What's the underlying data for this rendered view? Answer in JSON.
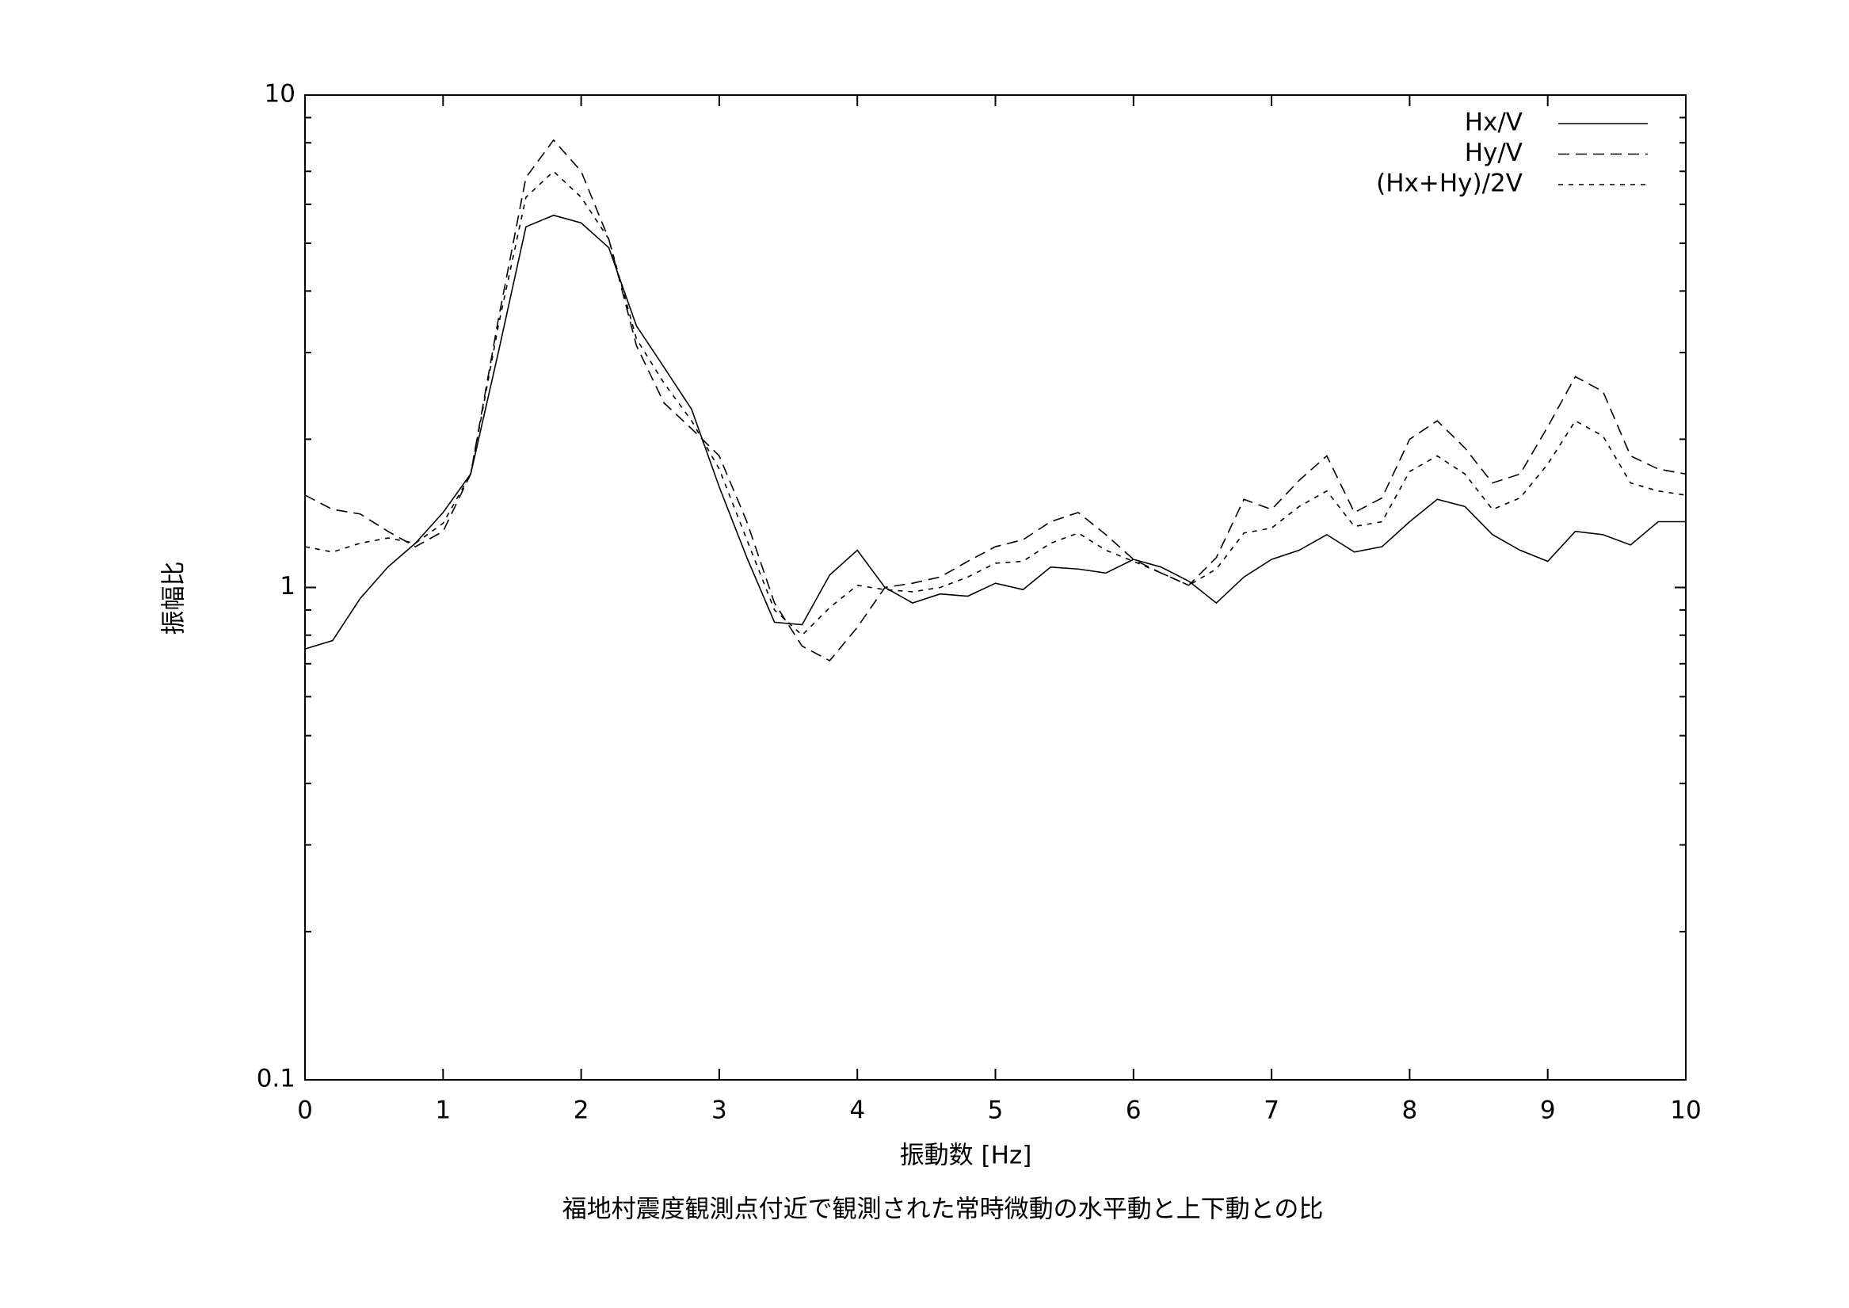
{
  "chart_data": {
    "type": "line",
    "title": "福地村震度観測点付近で観測された常時微動の水平動と上下動との比",
    "xlabel": "振動数 [Hz]",
    "ylabel": "振幅比",
    "x": [
      0,
      0.2,
      0.4,
      0.6,
      0.8,
      1.0,
      1.2,
      1.4,
      1.6,
      1.8,
      2.0,
      2.2,
      2.4,
      2.6,
      2.8,
      3.0,
      3.2,
      3.4,
      3.6,
      3.8,
      4.0,
      4.2,
      4.4,
      4.6,
      4.8,
      5.0,
      5.2,
      5.4,
      5.6,
      5.8,
      6.0,
      6.2,
      6.4,
      6.6,
      6.8,
      7.0,
      7.2,
      7.4,
      7.6,
      7.8,
      8.0,
      8.2,
      8.4,
      8.6,
      8.8,
      9.0,
      9.2,
      9.4,
      9.6,
      9.8,
      10.0
    ],
    "series": [
      {
        "name": "Hx/V",
        "color": "#000000",
        "dash": "none",
        "values": [
          0.75,
          0.78,
          0.95,
          1.1,
          1.23,
          1.42,
          1.7,
          3.0,
          5.4,
          5.7,
          5.5,
          4.9,
          3.4,
          2.8,
          2.3,
          1.6,
          1.15,
          0.85,
          0.84,
          1.06,
          1.19,
          1.0,
          0.93,
          0.97,
          0.96,
          1.02,
          0.99,
          1.1,
          1.09,
          1.07,
          1.14,
          1.1,
          1.03,
          0.93,
          1.05,
          1.14,
          1.19,
          1.28,
          1.18,
          1.21,
          1.36,
          1.51,
          1.46,
          1.28,
          1.19,
          1.13,
          1.3,
          1.28,
          1.22,
          1.36,
          1.36
        ]
      },
      {
        "name": "Hy/V",
        "color": "#000000",
        "dash": "14 8",
        "values": [
          1.54,
          1.44,
          1.41,
          1.3,
          1.21,
          1.3,
          1.7,
          3.5,
          6.8,
          8.1,
          7.0,
          5.1,
          3.1,
          2.37,
          2.1,
          1.85,
          1.36,
          0.93,
          0.76,
          0.71,
          0.83,
          1.0,
          1.02,
          1.05,
          1.13,
          1.21,
          1.25,
          1.36,
          1.42,
          1.28,
          1.14,
          1.07,
          1.01,
          1.15,
          1.51,
          1.44,
          1.65,
          1.85,
          1.42,
          1.52,
          2.0,
          2.18,
          1.92,
          1.63,
          1.7,
          2.12,
          2.68,
          2.5,
          1.85,
          1.74,
          1.7
        ]
      },
      {
        "name": "(Hx+Hy)/2V",
        "color": "#000000",
        "dash": "6 7",
        "values": [
          1.21,
          1.18,
          1.23,
          1.26,
          1.23,
          1.35,
          1.7,
          3.4,
          6.2,
          7.0,
          6.2,
          5.1,
          3.2,
          2.6,
          2.18,
          1.74,
          1.25,
          0.9,
          0.8,
          0.91,
          1.01,
          0.99,
          0.98,
          1.0,
          1.05,
          1.12,
          1.13,
          1.23,
          1.29,
          1.19,
          1.13,
          1.07,
          1.01,
          1.09,
          1.29,
          1.32,
          1.46,
          1.57,
          1.33,
          1.36,
          1.72,
          1.85,
          1.7,
          1.44,
          1.52,
          1.78,
          2.18,
          2.03,
          1.63,
          1.57,
          1.54
        ]
      }
    ],
    "xlim": [
      0,
      10
    ],
    "xticks": [
      0,
      1,
      2,
      3,
      4,
      5,
      6,
      7,
      8,
      9,
      10
    ],
    "ylim": [
      0.1,
      10
    ],
    "yticks": [
      0.1,
      1,
      10
    ],
    "ylog": true,
    "grid": false,
    "legend": "top-right"
  }
}
